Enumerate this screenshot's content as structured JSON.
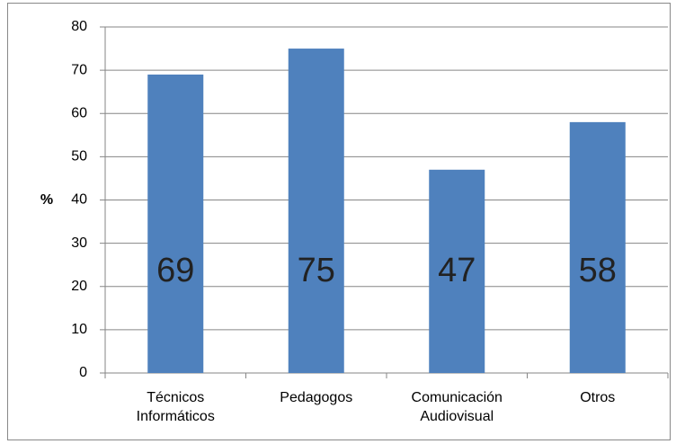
{
  "chart_data": {
    "type": "bar",
    "ylabel": "%",
    "categories": [
      "Técnicos Informáticos",
      "Pedagogos",
      "Comunicación Audiovisual",
      "Otros"
    ],
    "values": [
      69,
      75,
      47,
      58
    ],
    "color": "#4f81bd",
    "ylim": [
      0,
      80
    ],
    "yticks": [
      0,
      10,
      20,
      30,
      40,
      50,
      60,
      70,
      80
    ],
    "grid": true
  }
}
